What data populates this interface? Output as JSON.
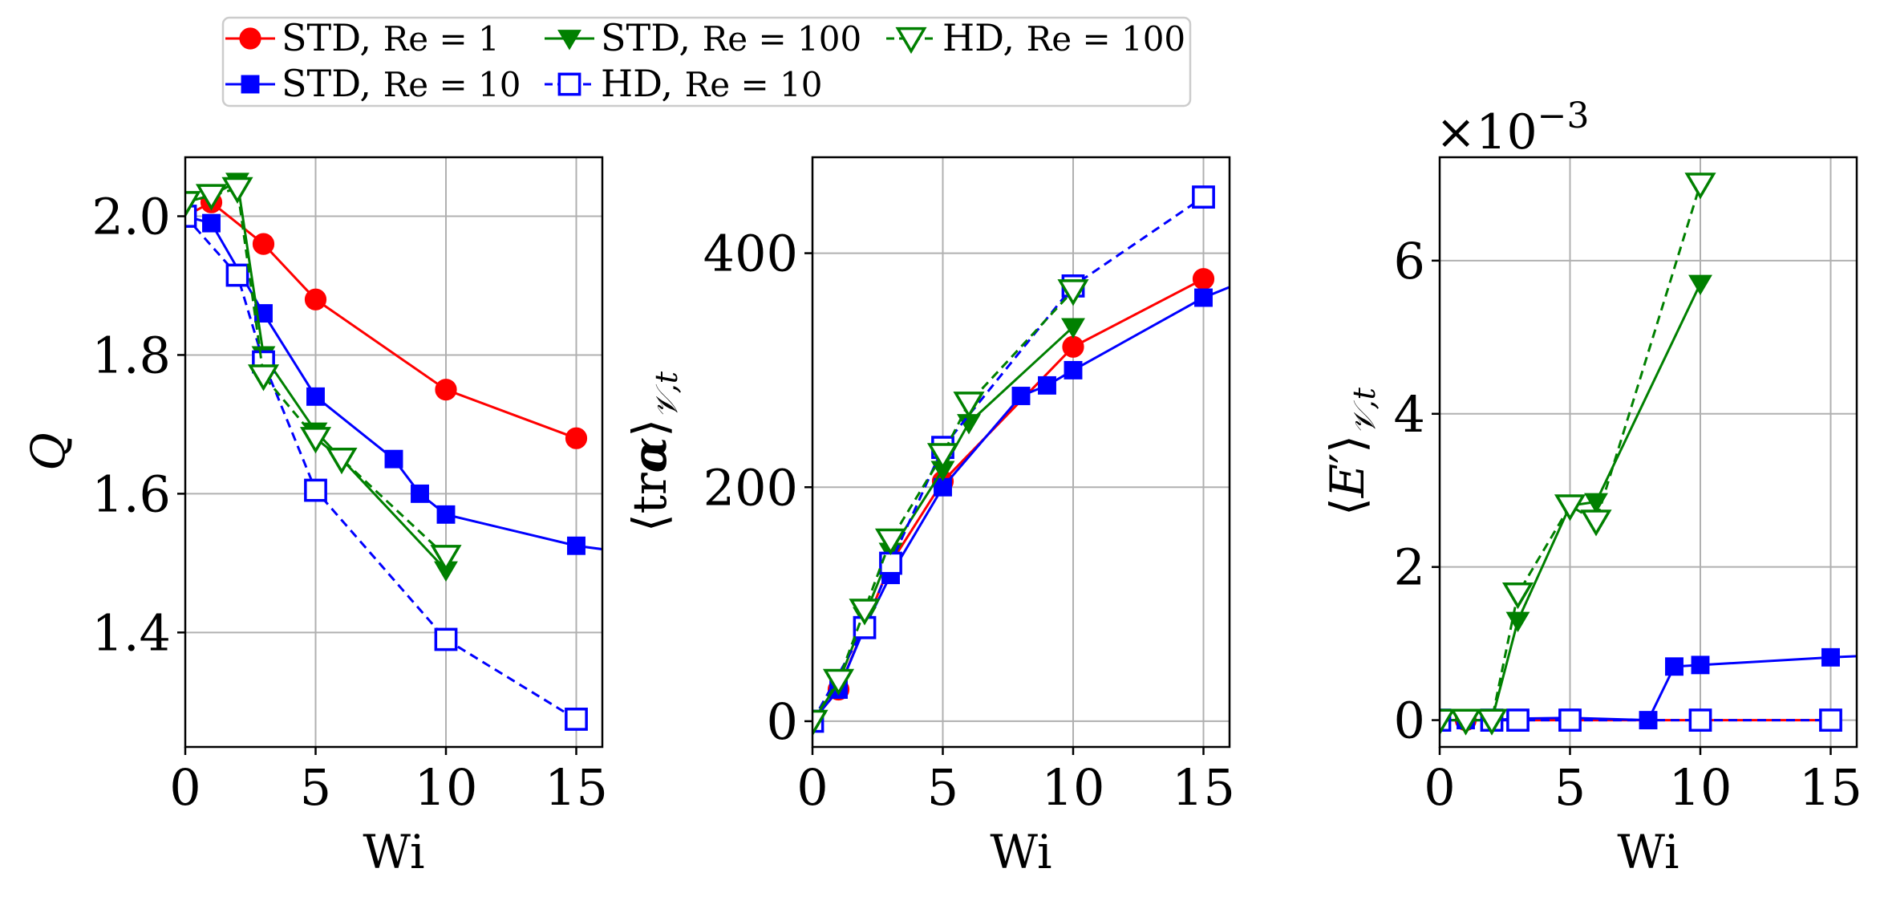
{
  "legend": {
    "entries": [
      {
        "label": "STD, Re = 1",
        "prefix": "STD,",
        "re": "Re = 1",
        "series": "std_re1"
      },
      {
        "label": "STD, Re = 100",
        "prefix": "STD,",
        "re": "Re = 100",
        "series": "std_re100"
      },
      {
        "label": "HD, Re = 100",
        "prefix": "HD,",
        "re": "Re = 100",
        "series": "hd_re100"
      },
      {
        "label": "STD, Re = 10",
        "prefix": "STD,",
        "re": "Re = 10",
        "series": "std_re10"
      },
      {
        "label": "HD, Re = 10",
        "prefix": "HD,",
        "re": "Re = 10",
        "series": "hd_re10"
      }
    ]
  },
  "styles": {
    "std_re1": {
      "color": "#ff0000",
      "marker": "circle",
      "dash": false,
      "filled": true
    },
    "std_re10": {
      "color": "#0000ff",
      "marker": "square",
      "dash": false,
      "filled": true
    },
    "std_re100": {
      "color": "#008000",
      "marker": "triangle-down",
      "dash": false,
      "filled": true
    },
    "hd_re10": {
      "color": "#0000ff",
      "marker": "square",
      "dash": true,
      "filled": false
    },
    "hd_re100": {
      "color": "#008000",
      "marker": "triangle-down",
      "dash": true,
      "filled": false
    }
  },
  "chart_data": [
    {
      "type": "line",
      "xlabel": "Wi",
      "ylabel": "Q",
      "xlim": [
        0,
        16
      ],
      "ylim": [
        1.235,
        2.085
      ],
      "xticks": [
        0,
        5,
        10,
        15
      ],
      "yticks": [
        1.4,
        1.6,
        1.8,
        2.0
      ],
      "ytick_labels": [
        "1.4",
        "1.6",
        "1.8",
        "2.0"
      ],
      "grid": true,
      "series": [
        {
          "key": "std_re1",
          "name": "STD, Re = 1",
          "x": [
            0,
            1,
            3,
            5,
            10,
            15
          ],
          "y": [
            2.0,
            2.02,
            1.96,
            1.88,
            1.75,
            1.68
          ]
        },
        {
          "key": "std_re10",
          "name": "STD, Re = 10",
          "x": [
            0,
            1,
            3,
            5,
            8,
            9,
            10,
            15,
            17
          ],
          "y": [
            2.0,
            1.99,
            1.86,
            1.74,
            1.65,
            1.6,
            1.57,
            1.525,
            1.515
          ]
        },
        {
          "key": "std_re100",
          "name": "STD, Re = 100",
          "x": [
            0,
            1,
            2,
            3,
            5,
            6,
            10
          ],
          "y": [
            2.02,
            2.03,
            2.05,
            1.8,
            1.69,
            1.65,
            1.49
          ]
        },
        {
          "key": "hd_re10",
          "name": "HD, Re = 10",
          "x": [
            0,
            2,
            3,
            5,
            10,
            15
          ],
          "y": [
            2.0,
            1.915,
            1.79,
            1.605,
            1.39,
            1.275
          ]
        },
        {
          "key": "hd_re100",
          "name": "HD, Re = 100",
          "x": [
            0,
            1,
            2,
            3,
            5,
            6,
            10
          ],
          "y": [
            2.02,
            2.03,
            2.04,
            1.77,
            1.68,
            1.65,
            1.51
          ]
        }
      ]
    },
    {
      "type": "line",
      "xlabel": "Wi",
      "ylabel": "⟨tr𝛂⟩𝒱,t",
      "ylabel_main": "⟨tr",
      "ylabel_alpha": "α",
      "ylabel_close": "⟩",
      "ylabel_sub": "𝒱,t",
      "xlim": [
        0,
        16
      ],
      "ylim": [
        -22,
        482
      ],
      "xticks": [
        0,
        5,
        10,
        15
      ],
      "yticks": [
        0,
        200,
        400
      ],
      "ytick_labels": [
        "0",
        "200",
        "400"
      ],
      "grid": true,
      "series": [
        {
          "key": "std_re1",
          "name": "STD, Re = 1",
          "x": [
            0,
            1,
            3,
            5,
            10,
            15
          ],
          "y": [
            0,
            27,
            135,
            205,
            320,
            378
          ]
        },
        {
          "key": "std_re10",
          "name": "STD, Re = 10",
          "x": [
            0,
            1,
            2,
            3,
            5,
            8,
            9,
            10,
            15,
            17
          ],
          "y": [
            0,
            27,
            80,
            125,
            200,
            278,
            287,
            300,
            362,
            380
          ]
        },
        {
          "key": "std_re100",
          "name": "STD, Re = 100",
          "x": [
            0,
            1,
            2,
            3,
            5,
            6,
            10
          ],
          "y": [
            0,
            33,
            90,
            145,
            215,
            255,
            337
          ]
        },
        {
          "key": "hd_re10",
          "name": "HD, Re = 10",
          "x": [
            0,
            2,
            3,
            5,
            10,
            15
          ],
          "y": [
            0,
            80,
            135,
            234,
            372,
            448
          ]
        },
        {
          "key": "hd_re100",
          "name": "HD, Re = 100",
          "x": [
            0,
            1,
            2,
            3,
            5,
            6,
            10
          ],
          "y": [
            0,
            35,
            95,
            155,
            228,
            272,
            368
          ]
        }
      ]
    },
    {
      "type": "line",
      "xlabel": "Wi",
      "ylabel": "⟨E′⟩𝒱,t",
      "ylabel_main": "⟨",
      "ylabel_e": "E",
      "ylabel_prime": "′",
      "ylabel_close": "⟩",
      "ylabel_sub": "𝒱,t",
      "offset_text": "×10",
      "offset_exp": "−3",
      "xlim": [
        0,
        16
      ],
      "ylim": [
        -0.35,
        7.35
      ],
      "xticks": [
        0,
        5,
        10,
        15
      ],
      "yticks": [
        0,
        2,
        4,
        6
      ],
      "ytick_labels": [
        "0",
        "2",
        "4",
        "6"
      ],
      "grid": true,
      "series": [
        {
          "key": "std_re1",
          "name": "STD, Re = 1",
          "x": [
            0,
            1,
            3,
            5,
            10,
            15
          ],
          "y": [
            0,
            0,
            0,
            0,
            0,
            0
          ]
        },
        {
          "key": "std_re10",
          "name": "STD, Re = 10",
          "x": [
            0,
            1,
            2,
            3,
            5,
            8,
            9,
            10,
            15,
            17
          ],
          "y": [
            0,
            0,
            0,
            0.02,
            0.03,
            0,
            0.7,
            0.72,
            0.82,
            0.85
          ]
        },
        {
          "key": "std_re100",
          "name": "STD, Re = 100",
          "x": [
            0,
            1,
            2,
            3,
            5,
            6,
            10
          ],
          "y": [
            0,
            0,
            0,
            1.3,
            2.8,
            2.85,
            5.7
          ]
        },
        {
          "key": "hd_re10",
          "name": "HD, Re = 10",
          "x": [
            0,
            2,
            3,
            5,
            10,
            15
          ],
          "y": [
            0,
            0,
            0,
            0,
            0,
            0
          ]
        },
        {
          "key": "hd_re100",
          "name": "HD, Re = 100",
          "x": [
            0,
            1,
            2,
            3,
            5,
            6,
            10
          ],
          "y": [
            0,
            0,
            0,
            1.65,
            2.8,
            2.6,
            7.0
          ]
        }
      ]
    }
  ]
}
